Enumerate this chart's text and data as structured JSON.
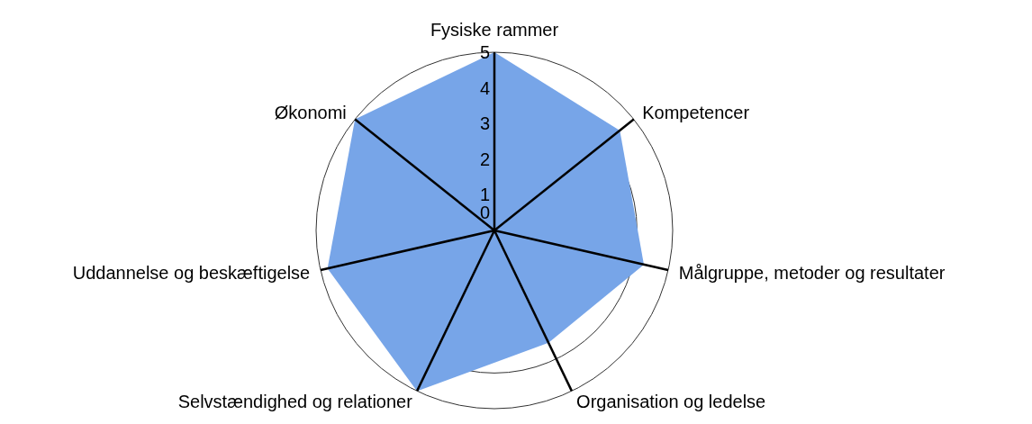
{
  "chart_data": {
    "type": "radar",
    "categories": [
      "Fysiske rammer",
      "Kompetencer",
      "Målgruppe, metoder og resultater",
      "Organisation og ledelse",
      "Selvstændighed og relationer",
      "Uddannelse og beskæftigelse",
      "Økonomi"
    ],
    "series": [
      {
        "color": "#77a5e8",
        "values": [
          5,
          4.5,
          4.3,
          3.5,
          5,
          4.8,
          5
        ]
      }
    ],
    "ylim": [
      0,
      5
    ],
    "yticks": [
      0,
      1,
      2,
      3,
      4,
      5
    ],
    "grid": true
  }
}
